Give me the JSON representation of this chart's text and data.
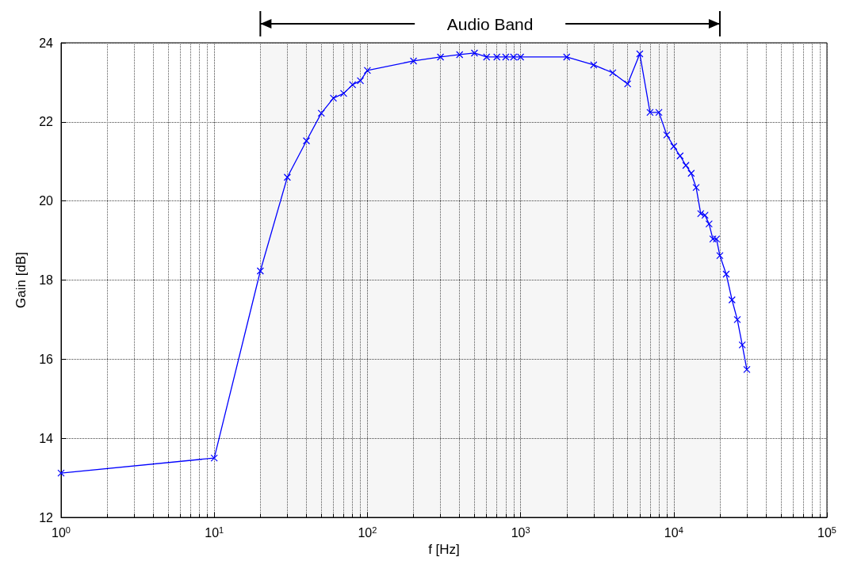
{
  "chart_data": {
    "type": "line",
    "xlabel": "f [Hz]",
    "ylabel": "Gain [dB]",
    "x": [
      1,
      10,
      20,
      30,
      40,
      50,
      60,
      70,
      80,
      90,
      100,
      200,
      300,
      400,
      500,
      600,
      700,
      800,
      900,
      1000,
      2000,
      3000,
      4000,
      5000,
      6000,
      7000,
      8000,
      9000,
      10000,
      11000,
      12000,
      13000,
      14000,
      15000,
      16000,
      17000,
      18000,
      19000,
      20000,
      22000,
      24000,
      26000,
      28000,
      30000
    ],
    "series": [
      {
        "color": "#0000ff",
        "values": [
          13.12,
          13.5,
          18.23,
          20.6,
          21.52,
          22.22,
          22.6,
          22.72,
          22.94,
          23.04,
          23.3,
          23.54,
          23.64,
          23.7,
          23.74,
          23.64,
          23.64,
          23.64,
          23.64,
          23.64,
          23.64,
          23.44,
          23.24,
          22.96,
          23.72,
          22.24,
          22.24,
          21.67,
          21.38,
          21.14,
          20.9,
          20.7,
          20.34,
          19.68,
          19.64,
          19.42,
          19.04,
          19.04,
          18.62,
          18.15,
          17.5,
          17.0,
          16.36,
          15.74
        ]
      }
    ],
    "log": "x",
    "xlim": [
      1,
      100000
    ],
    "xticks": [
      {
        "value": 1,
        "label": "10$^{0}$"
      },
      {
        "value": 10,
        "label": "10$^{1}$"
      },
      {
        "value": 100,
        "label": "10$^{2}$"
      },
      {
        "value": 1000,
        "label": "10$^{3}$"
      },
      {
        "value": 10000,
        "label": "10$^{4}$"
      },
      {
        "value": 100000,
        "label": "10$^{5}$"
      }
    ],
    "ylim": [
      12,
      24
    ],
    "yticks": [
      12,
      14,
      16,
      18,
      20,
      22,
      24
    ],
    "grid": true,
    "marker": "cross",
    "line_style": "solid",
    "legend": false,
    "bands": [
      {
        "axis": "x",
        "from": 20,
        "to": 20000,
        "label": "Audio Band"
      }
    ]
  }
}
